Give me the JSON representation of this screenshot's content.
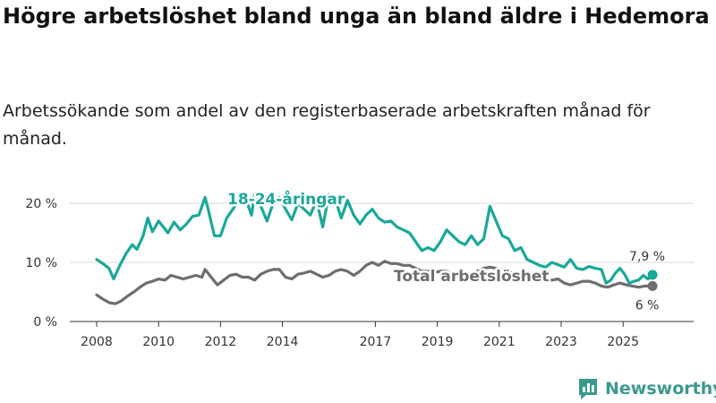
{
  "colors": {
    "youth": "#1aa89a",
    "total": "#6e6e6e",
    "grid": "#d9d9d9",
    "axis": "#333333",
    "brand": "#3a9a8e"
  },
  "brand": {
    "name": "Newsworthy",
    "icon": "bar-chart-logo-icon"
  },
  "chart_data": {
    "type": "line",
    "title": "Högre arbetslöshet bland unga än bland äldre i Hedemora",
    "subtitle": "Arbetssökande som andel av den registerbaserade arbetskraften månad för månad.",
    "xlabel": "",
    "ylabel": "",
    "xlim": [
      2008,
      2026.5
    ],
    "ylim": [
      0,
      20
    ],
    "x_ticks": [
      2008,
      2010,
      2012,
      2014,
      2017,
      2019,
      2021,
      2023,
      2025
    ],
    "x_tick_labels": [
      "2008",
      "2010",
      "2012",
      "2014",
      "2017",
      "2019",
      "2021",
      "2023",
      "2025"
    ],
    "y_ticks": [
      0,
      10,
      20
    ],
    "y_tick_labels": [
      "0 %",
      "10 %",
      "20 %"
    ],
    "grid": true,
    "series": [
      {
        "name": "18-24-åringar",
        "label": "18-24-åringar",
        "end_label": "7,9 %",
        "color": "#1aa89a",
        "points": [
          [
            2008.0,
            10.5
          ],
          [
            2008.2,
            9.8
          ],
          [
            2008.4,
            9.0
          ],
          [
            2008.55,
            7.2
          ],
          [
            2008.75,
            9.5
          ],
          [
            2008.95,
            11.5
          ],
          [
            2009.15,
            13.0
          ],
          [
            2009.3,
            12.2
          ],
          [
            2009.5,
            14.5
          ],
          [
            2009.65,
            17.5
          ],
          [
            2009.8,
            15.2
          ],
          [
            2010.0,
            17.0
          ],
          [
            2010.15,
            16.0
          ],
          [
            2010.3,
            15.0
          ],
          [
            2010.5,
            16.8
          ],
          [
            2010.7,
            15.5
          ],
          [
            2010.9,
            16.5
          ],
          [
            2011.1,
            17.8
          ],
          [
            2011.3,
            18.0
          ],
          [
            2011.5,
            21.0
          ],
          [
            2011.6,
            19.0
          ],
          [
            2011.8,
            14.5
          ],
          [
            2012.0,
            14.5
          ],
          [
            2012.2,
            17.5
          ],
          [
            2012.4,
            19.0
          ],
          [
            2012.6,
            20.5
          ],
          [
            2012.8,
            21.0
          ],
          [
            2013.0,
            18.0
          ],
          [
            2013.1,
            21.5
          ],
          [
            2013.3,
            19.5
          ],
          [
            2013.5,
            17.0
          ],
          [
            2013.7,
            20.0
          ],
          [
            2013.9,
            21.0
          ],
          [
            2014.1,
            19.0
          ],
          [
            2014.3,
            17.2
          ],
          [
            2014.5,
            20.0
          ],
          [
            2014.7,
            19.0
          ],
          [
            2014.9,
            18.0
          ],
          [
            2015.1,
            20.5
          ],
          [
            2015.3,
            16.0
          ],
          [
            2015.5,
            21.5
          ],
          [
            2015.7,
            20.8
          ],
          [
            2015.9,
            17.5
          ],
          [
            2016.1,
            20.5
          ],
          [
            2016.3,
            18.0
          ],
          [
            2016.5,
            16.5
          ],
          [
            2016.7,
            18.0
          ],
          [
            2016.9,
            19.0
          ],
          [
            2017.1,
            17.5
          ],
          [
            2017.3,
            16.8
          ],
          [
            2017.5,
            17.0
          ],
          [
            2017.7,
            16.0
          ],
          [
            2017.9,
            15.5
          ],
          [
            2018.1,
            15.0
          ],
          [
            2018.3,
            13.5
          ],
          [
            2018.5,
            12.0
          ],
          [
            2018.7,
            12.5
          ],
          [
            2018.9,
            12.0
          ],
          [
            2019.1,
            13.5
          ],
          [
            2019.3,
            15.5
          ],
          [
            2019.5,
            14.5
          ],
          [
            2019.7,
            13.5
          ],
          [
            2019.9,
            13.0
          ],
          [
            2020.1,
            14.5
          ],
          [
            2020.3,
            13.0
          ],
          [
            2020.5,
            14.0
          ],
          [
            2020.7,
            19.5
          ],
          [
            2020.9,
            17.0
          ],
          [
            2021.1,
            14.5
          ],
          [
            2021.3,
            14.0
          ],
          [
            2021.5,
            12.0
          ],
          [
            2021.7,
            12.5
          ],
          [
            2021.9,
            10.5
          ],
          [
            2022.1,
            10.0
          ],
          [
            2022.3,
            9.5
          ],
          [
            2022.5,
            9.2
          ],
          [
            2022.7,
            10.0
          ],
          [
            2022.9,
            9.6
          ],
          [
            2023.1,
            9.2
          ],
          [
            2023.3,
            10.5
          ],
          [
            2023.5,
            9.0
          ],
          [
            2023.7,
            8.8
          ],
          [
            2023.9,
            9.3
          ],
          [
            2024.1,
            9.0
          ],
          [
            2024.3,
            8.8
          ],
          [
            2024.45,
            6.5
          ],
          [
            2024.6,
            7.0
          ],
          [
            2024.75,
            8.2
          ],
          [
            2024.9,
            9.0
          ],
          [
            2025.05,
            8.0
          ],
          [
            2025.2,
            6.5
          ],
          [
            2025.35,
            6.8
          ],
          [
            2025.5,
            7.0
          ],
          [
            2025.65,
            7.8
          ],
          [
            2025.8,
            7.2
          ],
          [
            2025.95,
            7.9
          ]
        ]
      },
      {
        "name": "Total arbetslöshet",
        "label": "Total arbetslöshet",
        "end_label": "6 %",
        "color": "#6e6e6e",
        "points": [
          [
            2008.0,
            4.5
          ],
          [
            2008.2,
            3.8
          ],
          [
            2008.4,
            3.2
          ],
          [
            2008.6,
            3.0
          ],
          [
            2008.8,
            3.5
          ],
          [
            2009.0,
            4.3
          ],
          [
            2009.2,
            5.0
          ],
          [
            2009.4,
            5.8
          ],
          [
            2009.6,
            6.5
          ],
          [
            2009.8,
            6.8
          ],
          [
            2010.0,
            7.2
          ],
          [
            2010.2,
            7.0
          ],
          [
            2010.4,
            7.8
          ],
          [
            2010.6,
            7.5
          ],
          [
            2010.8,
            7.2
          ],
          [
            2011.0,
            7.5
          ],
          [
            2011.2,
            7.8
          ],
          [
            2011.4,
            7.5
          ],
          [
            2011.5,
            8.8
          ],
          [
            2011.7,
            7.5
          ],
          [
            2011.9,
            6.2
          ],
          [
            2012.1,
            7.0
          ],
          [
            2012.3,
            7.8
          ],
          [
            2012.5,
            8.0
          ],
          [
            2012.7,
            7.5
          ],
          [
            2012.9,
            7.5
          ],
          [
            2013.1,
            7.0
          ],
          [
            2013.3,
            8.0
          ],
          [
            2013.5,
            8.5
          ],
          [
            2013.7,
            8.8
          ],
          [
            2013.9,
            8.8
          ],
          [
            2014.1,
            7.5
          ],
          [
            2014.3,
            7.2
          ],
          [
            2014.5,
            8.0
          ],
          [
            2014.7,
            8.2
          ],
          [
            2014.9,
            8.5
          ],
          [
            2015.1,
            8.0
          ],
          [
            2015.3,
            7.5
          ],
          [
            2015.5,
            7.8
          ],
          [
            2015.7,
            8.5
          ],
          [
            2015.9,
            8.8
          ],
          [
            2016.1,
            8.5
          ],
          [
            2016.3,
            7.8
          ],
          [
            2016.5,
            8.5
          ],
          [
            2016.7,
            9.5
          ],
          [
            2016.9,
            10.0
          ],
          [
            2017.1,
            9.5
          ],
          [
            2017.3,
            10.2
          ],
          [
            2017.5,
            9.8
          ],
          [
            2017.7,
            9.8
          ],
          [
            2017.9,
            9.5
          ],
          [
            2018.1,
            9.5
          ],
          [
            2018.3,
            9.0
          ],
          [
            2018.5,
            8.5
          ],
          [
            2018.7,
            8.5
          ],
          [
            2018.9,
            8.3
          ],
          [
            2019.1,
            8.5
          ],
          [
            2019.3,
            8.5
          ],
          [
            2019.5,
            8.0
          ],
          [
            2019.7,
            7.8
          ],
          [
            2019.9,
            8.0
          ],
          [
            2020.1,
            8.2
          ],
          [
            2020.3,
            8.5
          ],
          [
            2020.5,
            9.0
          ],
          [
            2020.7,
            9.2
          ],
          [
            2020.9,
            9.0
          ],
          [
            2021.1,
            8.8
          ],
          [
            2021.3,
            8.5
          ],
          [
            2021.5,
            8.0
          ],
          [
            2021.7,
            7.8
          ],
          [
            2021.9,
            7.5
          ],
          [
            2022.1,
            7.2
          ],
          [
            2022.3,
            7.0
          ],
          [
            2022.5,
            7.2
          ],
          [
            2022.7,
            7.0
          ],
          [
            2022.9,
            7.2
          ],
          [
            2023.1,
            6.5
          ],
          [
            2023.3,
            6.2
          ],
          [
            2023.5,
            6.5
          ],
          [
            2023.7,
            6.8
          ],
          [
            2023.9,
            6.8
          ],
          [
            2024.1,
            6.5
          ],
          [
            2024.3,
            6.0
          ],
          [
            2024.5,
            5.8
          ],
          [
            2024.7,
            6.2
          ],
          [
            2024.9,
            6.5
          ],
          [
            2025.1,
            6.2
          ],
          [
            2025.3,
            6.0
          ],
          [
            2025.5,
            5.8
          ],
          [
            2025.7,
            6.0
          ],
          [
            2025.95,
            6.0
          ]
        ]
      }
    ]
  }
}
